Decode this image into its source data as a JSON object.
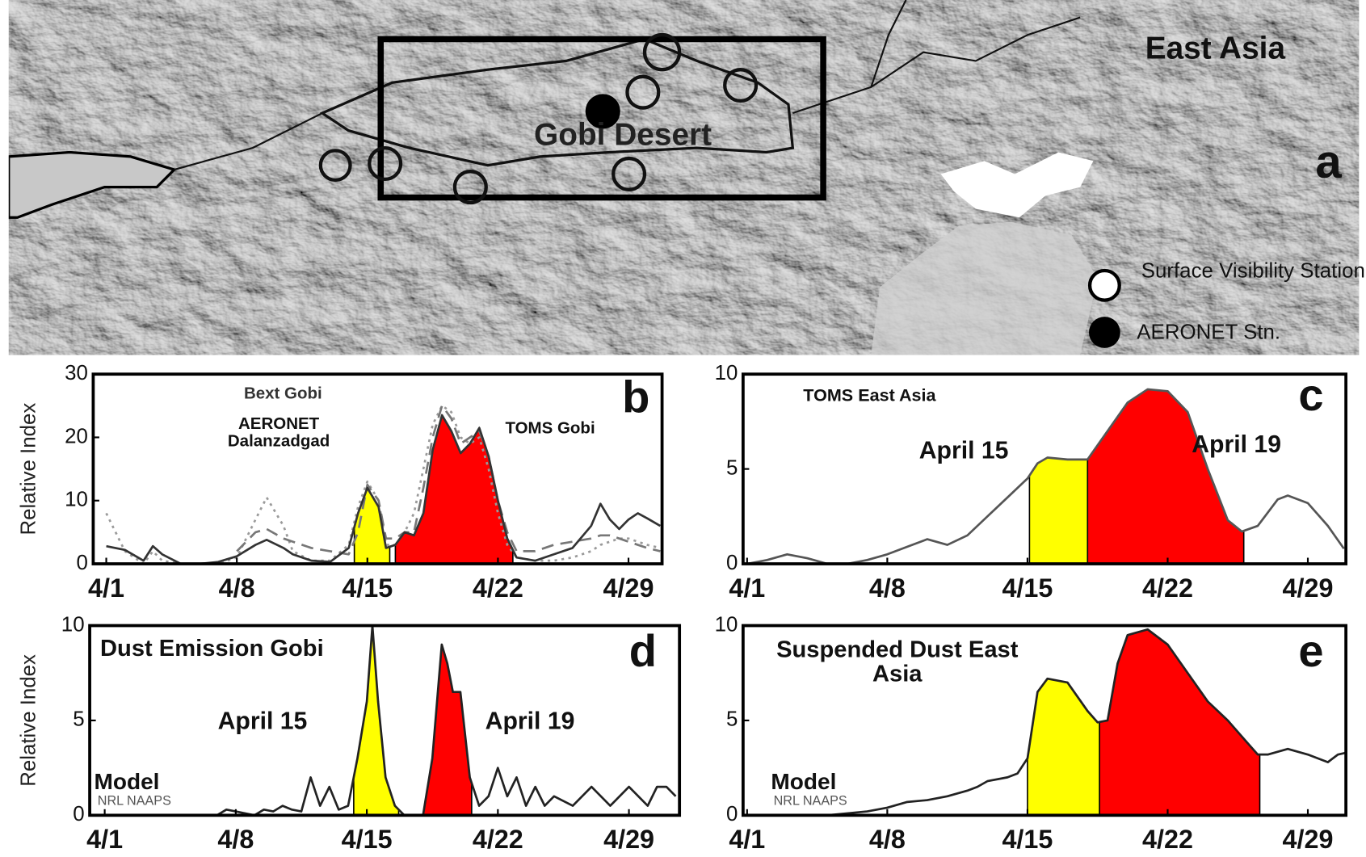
{
  "map": {
    "title": "East Asia",
    "label": "Gobi Desert",
    "panel": "a",
    "legend": [
      "Surface Visibility Station",
      "AERONET Stn."
    ]
  },
  "chart_data": [
    {
      "type": "line",
      "panel": "b",
      "ylabel": "Relative Index",
      "x": [
        1,
        2,
        3,
        3.5,
        4,
        5,
        6,
        7,
        8,
        9,
        9.6,
        10.5,
        11,
        12,
        13,
        14,
        14.5,
        15,
        15.6,
        16,
        16.5,
        17,
        17.5,
        18,
        18.5,
        19,
        19.5,
        20,
        20.5,
        21,
        21.5,
        22,
        22.5,
        23,
        24,
        25,
        26,
        27,
        27.5,
        28,
        28.5,
        29,
        29.5,
        30,
        30.7
      ],
      "xlim": [
        0.3,
        30.8
      ],
      "xticks": [
        {
          "value": 1,
          "label": "4/1"
        },
        {
          "value": 8,
          "label": "4/8"
        },
        {
          "value": 15,
          "label": "4/15"
        },
        {
          "value": 22,
          "label": "4/22"
        },
        {
          "value": 29,
          "label": "4/29"
        }
      ],
      "ylim": [
        0,
        30
      ],
      "yticks": [
        0,
        10,
        20,
        30
      ],
      "series": [
        {
          "name": "Bext Gobi",
          "color": "#9a9a9a",
          "style": "dotted",
          "values": [
            8,
            2,
            0,
            2,
            0.5,
            0,
            0,
            0,
            1,
            7,
            10.5,
            6,
            2,
            0.5,
            0.5,
            3,
            9,
            13,
            10,
            3,
            3,
            5,
            8,
            15,
            22,
            25,
            24,
            20,
            19,
            20,
            15,
            8,
            3,
            1,
            0.5,
            0.5,
            1,
            2,
            3,
            3.5,
            4,
            4,
            3.5,
            3,
            2.5
          ]
        },
        {
          "name": "AERONET Dalanzadgad",
          "color": "#777777",
          "style": "dashed",
          "values": [
            null,
            null,
            null,
            null,
            null,
            null,
            null,
            null,
            2,
            5,
            5.5,
            4,
            3.5,
            2.5,
            2,
            1.5,
            5,
            12.5,
            10,
            4,
            4,
            5,
            5,
            12,
            20,
            25,
            23,
            19,
            20,
            21,
            17,
            10,
            5,
            2,
            2,
            3,
            3.5,
            4,
            4.5,
            4.5,
            4,
            3.5,
            3,
            2.5,
            2
          ]
        },
        {
          "name": "TOMS Gobi",
          "color": "#333333",
          "style": "solid",
          "values": [
            2.8,
            2.2,
            0.5,
            2.8,
            1.5,
            0,
            0,
            0.3,
            1.2,
            3,
            3.8,
            2.5,
            1.5,
            0.5,
            0.3,
            2.5,
            8,
            12,
            9,
            2.5,
            3,
            5,
            4.5,
            8,
            18,
            23.5,
            21,
            17.5,
            19,
            21.5,
            17,
            10,
            4,
            1,
            0.5,
            1.5,
            2.5,
            6,
            9.5,
            7,
            5.5,
            7,
            8,
            7.2,
            6
          ],
          "fills": [
            {
              "x": [
                14.3,
                16.2
              ],
              "color": "#ffff00"
            },
            {
              "x": [
                16.5,
                22.8
              ],
              "color": "#ff0000"
            }
          ]
        }
      ]
    },
    {
      "type": "line",
      "panel": "c",
      "x": [
        1,
        2,
        3,
        4,
        5,
        6,
        7,
        8,
        9,
        10,
        11,
        12,
        13,
        14,
        15,
        15.5,
        16,
        17,
        18,
        19,
        20,
        21,
        22,
        23,
        24,
        25,
        25.7,
        26.5,
        27.5,
        28,
        29,
        30,
        30.8
      ],
      "xlim": [
        0.8,
        30.9
      ],
      "xticks": [
        {
          "value": 1,
          "label": "4/1"
        },
        {
          "value": 8,
          "label": "4/8"
        },
        {
          "value": 15,
          "label": "4/15"
        },
        {
          "value": 22,
          "label": "4/22"
        },
        {
          "value": 29,
          "label": "4/29"
        }
      ],
      "ylim": [
        0,
        10
      ],
      "yticks": [
        0,
        5,
        10
      ],
      "annotations": [
        "April 15",
        "April 19"
      ],
      "series": [
        {
          "name": "TOMS East Asia",
          "color": "#555555",
          "style": "solid",
          "values": [
            0,
            0.2,
            0.5,
            0.3,
            0,
            0,
            0.2,
            0.5,
            0.9,
            1.3,
            1,
            1.5,
            2.5,
            3.5,
            4.5,
            5.3,
            5.6,
            5.5,
            5.5,
            7,
            8.5,
            9.2,
            9.1,
            8,
            5,
            2.3,
            1.7,
            2,
            3.4,
            3.6,
            3.2,
            2,
            0.8
          ],
          "fills": [
            {
              "x": [
                15.1,
                18.0
              ],
              "color": "#ffff00"
            },
            {
              "x": [
                18.0,
                25.8
              ],
              "color": "#ff0000"
            }
          ]
        }
      ]
    },
    {
      "type": "line",
      "panel": "d",
      "ylabel": "Relative Index",
      "x": [
        1,
        2,
        3,
        4,
        5,
        6,
        7,
        7.5,
        8,
        9,
        9.5,
        10,
        10.5,
        11,
        11.5,
        12,
        12.5,
        13,
        13.5,
        14,
        14.5,
        15,
        15.3,
        15.6,
        16,
        16.5,
        17,
        18,
        18.5,
        19,
        19.3,
        19.6,
        20,
        20.5,
        21,
        21.5,
        22,
        22.5,
        23,
        23.5,
        24,
        24.5,
        25,
        26,
        27,
        28,
        29,
        30,
        30.5,
        31,
        31.5
      ],
      "xlim": [
        0.2,
        31.7
      ],
      "xticks": [
        {
          "value": 1,
          "label": "4/1"
        },
        {
          "value": 8,
          "label": "4/8"
        },
        {
          "value": 15,
          "label": "4/15"
        },
        {
          "value": 22,
          "label": "4/22"
        },
        {
          "value": 29,
          "label": "4/29"
        }
      ],
      "ylim": [
        0,
        10
      ],
      "yticks": [
        0,
        5,
        10
      ],
      "annotations": [
        "April 15",
        "April 19",
        "Model",
        "NRL NAAPS"
      ],
      "series": [
        {
          "name": "Dust Emission Gobi",
          "color": "#222222",
          "style": "solid",
          "values": [
            0,
            0,
            0,
            0,
            0,
            0,
            0,
            0.3,
            0.2,
            0,
            0.3,
            0.2,
            0.5,
            0.3,
            0.2,
            2,
            0.5,
            1.5,
            0.3,
            0.5,
            3,
            6,
            10,
            6,
            2,
            0.5,
            0,
            0,
            3,
            9,
            8,
            6.5,
            6.5,
            2,
            0.5,
            1,
            2.5,
            1,
            2,
            0.5,
            1.5,
            0.5,
            1,
            0.5,
            1.5,
            0.5,
            1.5,
            0.5,
            1.5,
            1.5,
            1
          ],
          "fills": [
            {
              "x": [
                14.3,
                16.7
              ],
              "color": "#ffff00"
            },
            {
              "x": [
                17.8,
                20.6
              ],
              "color": "#ff0000"
            }
          ]
        }
      ]
    },
    {
      "type": "line",
      "panel": "e",
      "x": [
        1,
        2,
        3,
        4,
        5,
        6,
        7,
        8,
        9,
        10,
        11,
        12,
        12.5,
        13,
        14,
        14.5,
        15,
        15.5,
        16,
        17,
        18,
        18.5,
        19,
        19.5,
        20,
        21,
        22,
        23,
        24,
        25,
        26,
        26.5,
        27,
        28,
        29,
        30,
        30.5,
        30.9
      ],
      "xlim": [
        0.8,
        30.9
      ],
      "xticks": [
        {
          "value": 1,
          "label": "4/1"
        },
        {
          "value": 8,
          "label": "4/8"
        },
        {
          "value": 15,
          "label": "4/15"
        },
        {
          "value": 22,
          "label": "4/22"
        },
        {
          "value": 29,
          "label": "4/29"
        }
      ],
      "ylim": [
        0,
        10
      ],
      "yticks": [
        0,
        5,
        10
      ],
      "annotations": [
        "Model",
        "NRL NAAPS"
      ],
      "series": [
        {
          "name": "Suspended Dust East Asia",
          "color": "#222222",
          "style": "solid",
          "values": [
            0,
            0,
            0,
            0,
            0,
            0.1,
            0.2,
            0.4,
            0.7,
            0.8,
            1,
            1.3,
            1.5,
            1.8,
            2,
            2.2,
            3,
            6.5,
            7.2,
            7,
            5.5,
            4.9,
            5,
            8,
            9.5,
            9.8,
            9,
            7.5,
            6,
            5,
            3.8,
            3.2,
            3.2,
            3.5,
            3.2,
            2.8,
            3.2,
            3.3
          ],
          "fills": [
            {
              "x": [
                15.0,
                18.6
              ],
              "color": "#ffff00"
            },
            {
              "x": [
                18.6,
                26.6
              ],
              "color": "#ff0000"
            }
          ]
        }
      ]
    }
  ]
}
